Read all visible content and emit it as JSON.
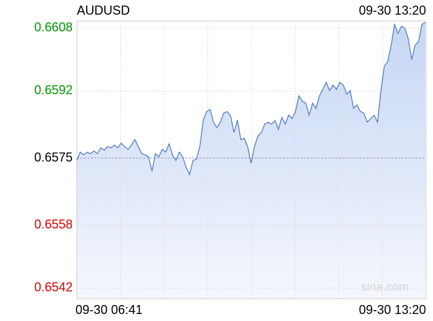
{
  "chart_data": {
    "type": "line",
    "title": "AUDUSD",
    "updated": "09-30 13:20",
    "x_labels": [
      "09-30 06:41",
      "09-30 13:20"
    ],
    "watermark": "sina.com",
    "values": [
      0.65744,
      0.65765,
      0.65758,
      0.65765,
      0.65761,
      0.65768,
      0.65761,
      0.65776,
      0.6577,
      0.65779,
      0.65776,
      0.65783,
      0.65776,
      0.65788,
      0.65779,
      0.65772,
      0.65783,
      0.65797,
      0.65779,
      0.65761,
      0.65758,
      0.65753,
      0.65717,
      0.65761,
      0.65753,
      0.65772,
      0.65765,
      0.65786,
      0.65758,
      0.65744,
      0.65765,
      0.65753,
      0.65726,
      0.65708,
      0.65744,
      0.65747,
      0.65779,
      0.65846,
      0.65868,
      0.65873,
      0.65841,
      0.65827,
      0.65841,
      0.65864,
      0.65868,
      0.65857,
      0.65815,
      0.65846,
      0.65797,
      0.658,
      0.65779,
      0.65737,
      0.65779,
      0.65806,
      0.65815,
      0.65836,
      0.65841,
      0.65836,
      0.65845,
      0.65823,
      0.65853,
      0.65836,
      0.65859,
      0.6585,
      0.65868,
      0.65908,
      0.65894,
      0.65889,
      0.65859,
      0.65889,
      0.65876,
      0.65907,
      0.65924,
      0.65942,
      0.65921,
      0.65935,
      0.65924,
      0.65942,
      0.65935,
      0.65912,
      0.65921,
      0.65876,
      0.65885,
      0.65868,
      0.65864,
      0.65841,
      0.6585,
      0.65859,
      0.65841,
      0.65921,
      0.65983,
      0.65995,
      0.66036,
      0.66089,
      0.66066,
      0.66084,
      0.6608,
      0.66053,
      0.66,
      0.66036,
      0.66045,
      0.66089,
      0.66094
    ],
    "color": "#4a78c2",
    "ylim": [
      0.654,
      0.661
    ],
    "yticks": [
      0.6608,
      0.6592,
      0.6575,
      0.6558,
      0.6542
    ],
    "ytick_colors": [
      "#009900",
      "#009900",
      "#000000",
      "#dd0000",
      "#dd0000"
    ],
    "grid": true
  }
}
